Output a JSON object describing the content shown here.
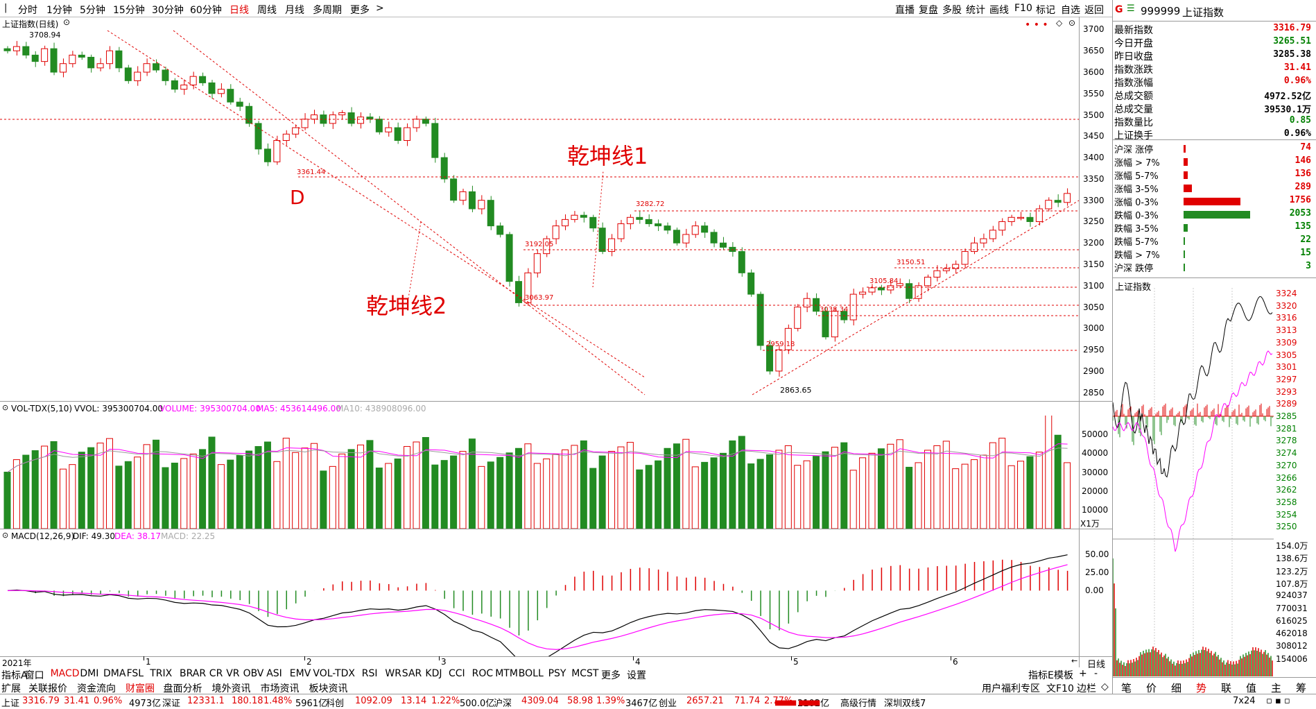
{
  "toolbar": {
    "periods": [
      "分时",
      "1分钟",
      "5分钟",
      "15分钟",
      "30分钟",
      "60分钟",
      "日线",
      "周线",
      "月线",
      "多周期",
      "更多"
    ],
    "active_period": "日线",
    "right_tools": [
      "直播",
      "复盘",
      "多股",
      "统计",
      "画线",
      "F10",
      "标记",
      "自选",
      "返回"
    ]
  },
  "main_chart": {
    "title": "上证指数(日线)",
    "high_label": "3708.94",
    "price_labels": [
      "3361.44",
      "3282.72",
      "3192.05",
      "3063.97",
      "3150.51",
      "3105.84",
      "3038.34",
      "2959.18",
      "2863.65"
    ],
    "annotations": {
      "d": "D",
      "line1": "乾坤线1",
      "line2": "乾坤线2"
    },
    "y_ticks": [
      "3700",
      "3650",
      "3600",
      "3550",
      "3500",
      "3450",
      "3400",
      "3350",
      "3300",
      "3250",
      "3200",
      "3150",
      "3100",
      "3050",
      "3000",
      "2950",
      "2900",
      "2850"
    ],
    "x_months": [
      "2021年",
      "1",
      "2",
      "3",
      "4",
      "5",
      "6"
    ]
  },
  "volume": {
    "label": "VOL-TDX(5,10)",
    "vvol": "VVOL: 395300704.00",
    "volume": "VOLUME: 395300704.00",
    "ma5": "MA5: 453614496.00",
    "ma10": "MA10: 438908096.00",
    "y_ticks": [
      "50000",
      "40000",
      "30000",
      "20000",
      "10000"
    ],
    "unit": "X1万"
  },
  "macd": {
    "label": "MACD(12,26,9)",
    "dif": "DIF: 49.30",
    "dea": "DEA: 38.17",
    "macd": "MACD: 22.25",
    "y_ticks": [
      "50.00",
      "25.00",
      "0.00"
    ],
    "period_label": "日线"
  },
  "indicator_tabs": [
    "指标A",
    "窗口",
    "MACD",
    "DMI",
    "DMA",
    "FSL",
    "TRIX",
    "BRAR",
    "CR",
    "VR",
    "OBV",
    "ASI",
    "EMV",
    "VOL-TDX",
    "RSI",
    "WR",
    "SAR",
    "KDJ",
    "CCI",
    "ROC",
    "MTM",
    "BOLL",
    "PSY",
    "MCST",
    "更多",
    "设置"
  ],
  "indicator_tabs_right": [
    "指标E模",
    "板"
  ],
  "bottom_tabs": [
    "扩展",
    "关联报价",
    "资金流向",
    "财富圈",
    "盘面分析",
    "境外资讯",
    "市场资讯",
    "板块资讯"
  ],
  "bottom_right": "用户福利专区",
  "bottom_right2": "文F10",
  "bottom_right3": "边栏",
  "side": {
    "code": "999999",
    "name": "上证指数",
    "quote": [
      {
        "label": "最新指数",
        "value": "3316.79",
        "color": "#e00000"
      },
      {
        "label": "今日开盘",
        "value": "3265.51",
        "color": "#008000"
      },
      {
        "label": "昨日收盘",
        "value": "3285.38",
        "color": "#000000"
      },
      {
        "label": "指数涨跌",
        "value": "31.41",
        "color": "#e00000"
      },
      {
        "label": "指数涨幅",
        "value": "0.96%",
        "color": "#e00000"
      },
      {
        "label": "总成交额",
        "value": "4972.52亿",
        "color": "#000000"
      },
      {
        "label": "总成交量",
        "value": "39530.1万",
        "color": "#000000"
      },
      {
        "label": "指数量比",
        "value": "0.85",
        "color": "#008000"
      },
      {
        "label": "上证换手",
        "value": "0.96%",
        "color": "#000000"
      }
    ],
    "breadth": [
      {
        "label": "沪深 涨停",
        "value": "74",
        "kind": "up",
        "ratio": 0.03
      },
      {
        "label": "涨幅 > 7%",
        "value": "146",
        "kind": "up",
        "ratio": 0.06
      },
      {
        "label": "涨幅 5-7%",
        "value": "136",
        "kind": "up",
        "ratio": 0.06
      },
      {
        "label": "涨幅 3-5%",
        "value": "289",
        "kind": "up",
        "ratio": 0.12
      },
      {
        "label": "涨幅 0-3%",
        "value": "1756",
        "kind": "up",
        "ratio": 0.82
      },
      {
        "label": "跌幅 0-3%",
        "value": "2053",
        "kind": "down",
        "ratio": 0.96
      },
      {
        "label": "跌幅 3-5%",
        "value": "135",
        "kind": "down",
        "ratio": 0.06
      },
      {
        "label": "跌幅 5-7%",
        "value": "22",
        "kind": "down",
        "ratio": 0.01
      },
      {
        "label": "跌幅 > 7%",
        "value": "15",
        "kind": "down",
        "ratio": 0.01
      },
      {
        "label": "沪深 跌停",
        "value": "3",
        "kind": "down",
        "ratio": 0.01
      }
    ],
    "intraday_title": "上证指数",
    "intraday_ticks": [
      "3324",
      "3320",
      "3316",
      "3313",
      "3309",
      "3305",
      "3301",
      "3297",
      "3293",
      "3289",
      "3285",
      "3281",
      "3278",
      "3274",
      "3270",
      "3266",
      "3262",
      "3258",
      "3254",
      "3250"
    ],
    "vol_ticks": [
      "154.0万",
      "138.6万",
      "123.2万",
      "107.8万",
      "924037",
      "770031",
      "616025",
      "462018",
      "308012",
      "154006"
    ],
    "right_tabs": [
      "笔",
      "价",
      "细",
      "势",
      "联",
      "值",
      "主",
      "筹"
    ],
    "active_tab": "势"
  },
  "status_bar": [
    {
      "text": "上证",
      "color": "#000"
    },
    {
      "text": "3316.79",
      "color": "#e00000"
    },
    {
      "text": "31.41",
      "color": "#e00000"
    },
    {
      "text": "0.96%",
      "color": "#e00000"
    },
    {
      "text": "4973亿",
      "color": "#000"
    },
    {
      "text": "深证",
      "color": "#000"
    },
    {
      "text": "12331.1",
      "color": "#e00000"
    },
    {
      "text": "180.18",
      "color": "#e00000"
    },
    {
      "text": "1.48%",
      "color": "#e00000"
    },
    {
      "text": "5961亿",
      "color": "#000"
    },
    {
      "text": "科创",
      "color": "#000"
    },
    {
      "text": "1092.09",
      "color": "#e00000"
    },
    {
      "text": "13.14",
      "color": "#e00000"
    },
    {
      "text": "1.22%",
      "color": "#e00000"
    },
    {
      "text": "500.0亿",
      "color": "#000"
    },
    {
      "text": "沪深",
      "color": "#000"
    },
    {
      "text": "4309.04",
      "color": "#e00000"
    },
    {
      "text": "58.98",
      "color": "#e00000"
    },
    {
      "text": "1.39%",
      "color": "#e00000"
    },
    {
      "text": "3467亿",
      "color": "#000"
    },
    {
      "text": "创业",
      "color": "#000"
    },
    {
      "text": "2657.21",
      "color": "#e00000"
    },
    {
      "text": "71.74",
      "color": "#e00000"
    },
    {
      "text": "2.77%",
      "color": "#e00000"
    },
    {
      "text": "2102亿",
      "color": "#000"
    }
  ],
  "status_right": [
    "高级行情",
    "深圳双线7"
  ],
  "status_corner": "7x24",
  "chart_data": {
    "type": "candlestick",
    "title": "上证指数(日线)",
    "ylim": [
      2830,
      3730
    ],
    "closes": [
      3650,
      3660,
      3640,
      3625,
      3655,
      3600,
      3620,
      3640,
      3635,
      3610,
      3620,
      3650,
      3610,
      3580,
      3600,
      3620,
      3605,
      3580,
      3560,
      3570,
      3590,
      3575,
      3550,
      3560,
      3530,
      3520,
      3480,
      3420,
      3390,
      3440,
      3455,
      3470,
      3490,
      3500,
      3480,
      3500,
      3505,
      3480,
      3495,
      3490,
      3460,
      3470,
      3440,
      3470,
      3490,
      3480,
      3400,
      3350,
      3300,
      3320,
      3280,
      3300,
      3240,
      3220,
      3110,
      3060,
      3130,
      3175,
      3210,
      3240,
      3255,
      3265,
      3260,
      3235,
      3180,
      3210,
      3245,
      3260,
      3255,
      3245,
      3240,
      3230,
      3200,
      3220,
      3240,
      3225,
      3200,
      3190,
      3180,
      3130,
      3080,
      2960,
      2900,
      2950,
      3000,
      3050,
      3070,
      3040,
      2980,
      3040,
      3020,
      3080,
      3085,
      3095,
      3090,
      3100,
      3105,
      3070,
      3100,
      3120,
      3135,
      3140,
      3150,
      3180,
      3200,
      3210,
      3230,
      3250,
      3260,
      3260,
      3250,
      3280,
      3300,
      3295,
      3316
    ]
  }
}
